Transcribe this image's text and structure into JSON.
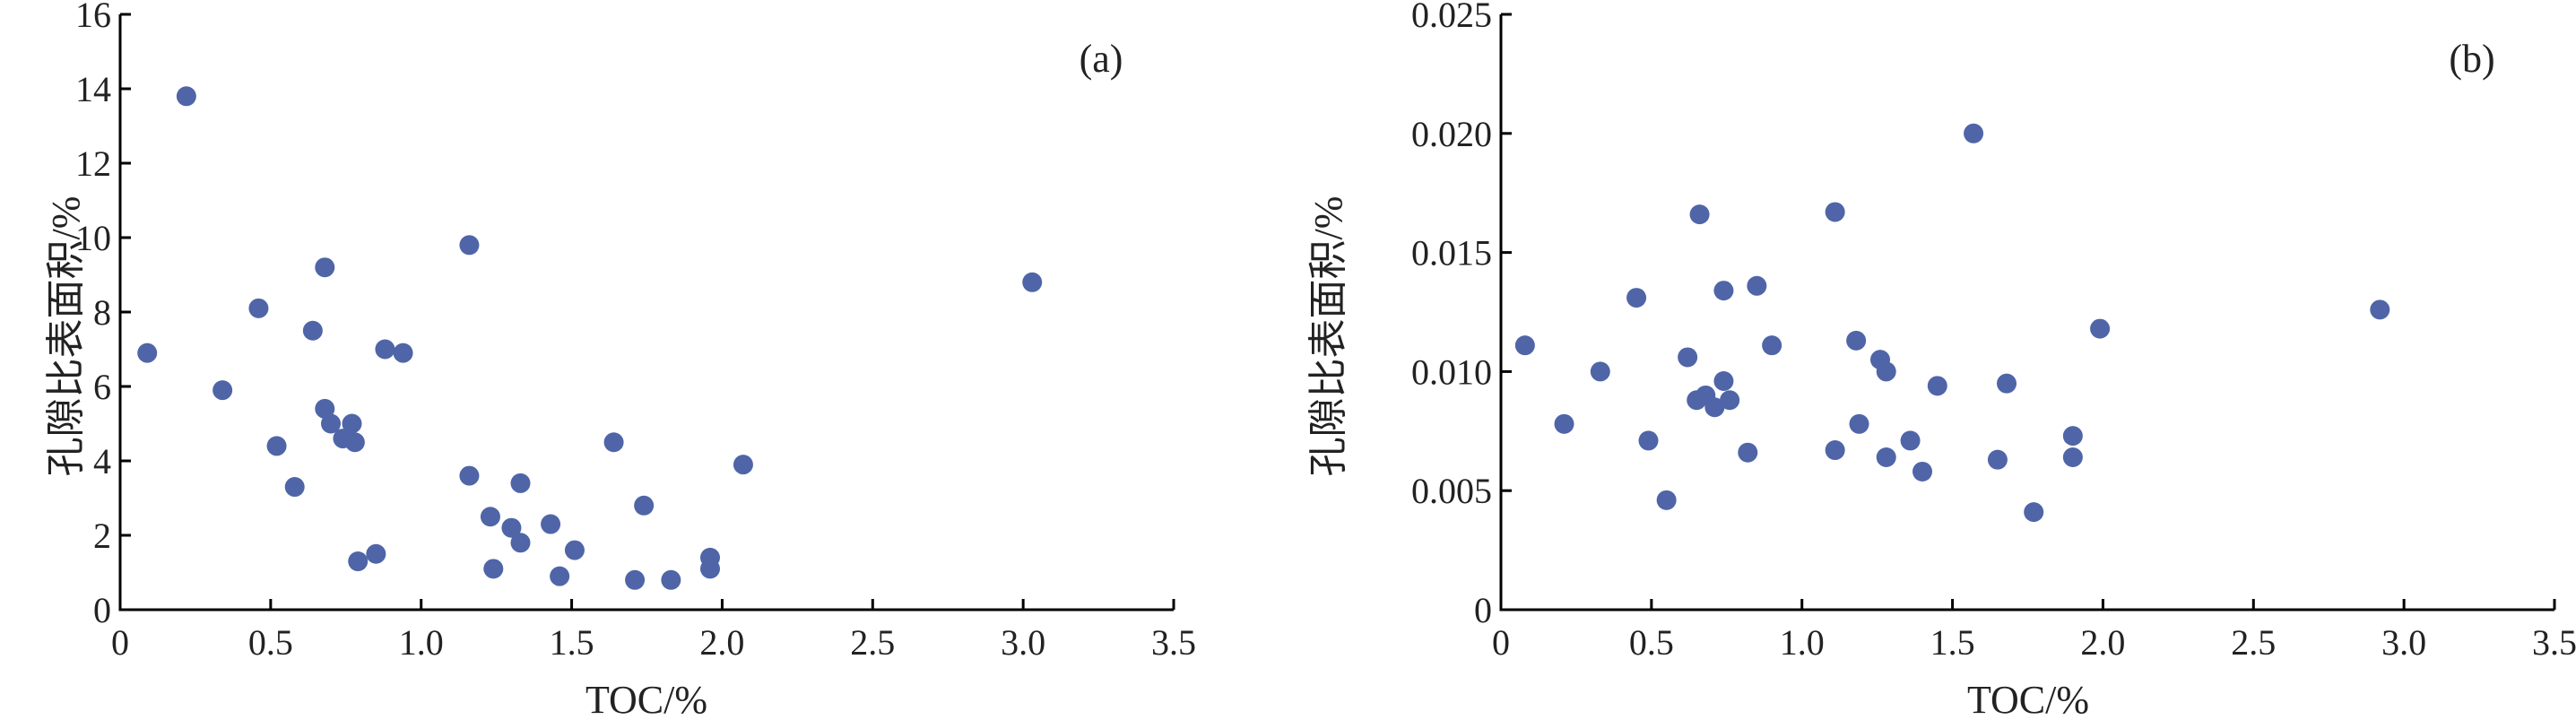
{
  "chart_data": [
    {
      "type": "scatter",
      "panel_label": "(a)",
      "xlabel": "TOC/%",
      "ylabel": "孔隙比表面积/%",
      "xlim": [
        0,
        3.5
      ],
      "ylim": [
        0,
        16
      ],
      "xticks": [
        "0",
        "0.5",
        "1.0",
        "1.5",
        "2.0",
        "2.5",
        "3.0",
        "3.5"
      ],
      "yticks": [
        "0",
        "2",
        "4",
        "6",
        "8",
        "10",
        "12",
        "14",
        "16"
      ],
      "grid": false,
      "color": "#4f65a8",
      "points": [
        [
          0.09,
          6.9
        ],
        [
          0.22,
          13.8
        ],
        [
          0.34,
          5.9
        ],
        [
          0.46,
          8.1
        ],
        [
          0.52,
          4.4
        ],
        [
          0.58,
          3.3
        ],
        [
          0.64,
          7.5
        ],
        [
          0.68,
          9.2
        ],
        [
          0.68,
          5.4
        ],
        [
          0.7,
          5.0
        ],
        [
          0.74,
          4.6
        ],
        [
          0.77,
          5.0
        ],
        [
          0.78,
          4.5
        ],
        [
          0.79,
          1.3
        ],
        [
          0.85,
          1.5
        ],
        [
          0.88,
          7.0
        ],
        [
          0.94,
          6.9
        ],
        [
          1.16,
          9.8
        ],
        [
          1.16,
          3.6
        ],
        [
          1.23,
          2.5
        ],
        [
          1.24,
          1.1
        ],
        [
          1.3,
          2.2
        ],
        [
          1.33,
          3.4
        ],
        [
          1.33,
          1.8
        ],
        [
          1.43,
          2.3
        ],
        [
          1.46,
          0.9
        ],
        [
          1.51,
          1.6
        ],
        [
          1.64,
          4.5
        ],
        [
          1.71,
          0.8
        ],
        [
          1.74,
          2.8
        ],
        [
          1.83,
          0.8
        ],
        [
          1.96,
          1.4
        ],
        [
          1.96,
          1.1
        ],
        [
          2.07,
          3.9
        ],
        [
          3.03,
          8.8
        ]
      ]
    },
    {
      "type": "scatter",
      "panel_label": "(b)",
      "xlabel": "TOC/%",
      "ylabel": "孔隙比表面积/%",
      "xlim": [
        0,
        3.5
      ],
      "ylim": [
        0,
        0.025
      ],
      "xticks": [
        "0",
        "0.5",
        "1.0",
        "1.5",
        "2.0",
        "2.5",
        "3.0",
        "3.5"
      ],
      "yticks": [
        "0",
        "0.005",
        "0.010",
        "0.015",
        "0.020",
        "0.025"
      ],
      "grid": false,
      "color": "#4f65a8",
      "points": [
        [
          0.08,
          0.0111
        ],
        [
          0.21,
          0.0078
        ],
        [
          0.33,
          0.01
        ],
        [
          0.45,
          0.0131
        ],
        [
          0.49,
          0.0071
        ],
        [
          0.55,
          0.0046
        ],
        [
          0.62,
          0.0106
        ],
        [
          0.65,
          0.0088
        ],
        [
          0.66,
          0.0166
        ],
        [
          0.68,
          0.009
        ],
        [
          0.71,
          0.0085
        ],
        [
          0.74,
          0.0096
        ],
        [
          0.74,
          0.0134
        ],
        [
          0.76,
          0.0088
        ],
        [
          0.82,
          0.0066
        ],
        [
          0.85,
          0.0136
        ],
        [
          0.9,
          0.0111
        ],
        [
          1.11,
          0.0167
        ],
        [
          1.11,
          0.0067
        ],
        [
          1.18,
          0.0113
        ],
        [
          1.19,
          0.0078
        ],
        [
          1.26,
          0.0105
        ],
        [
          1.28,
          0.01
        ],
        [
          1.28,
          0.0064
        ],
        [
          1.36,
          0.0071
        ],
        [
          1.4,
          0.0058
        ],
        [
          1.45,
          0.0094
        ],
        [
          1.57,
          0.02
        ],
        [
          1.65,
          0.0063
        ],
        [
          1.68,
          0.0095
        ],
        [
          1.77,
          0.0041
        ],
        [
          1.9,
          0.0073
        ],
        [
          1.9,
          0.0064
        ],
        [
          1.99,
          0.0118
        ],
        [
          2.92,
          0.0126
        ]
      ]
    }
  ]
}
